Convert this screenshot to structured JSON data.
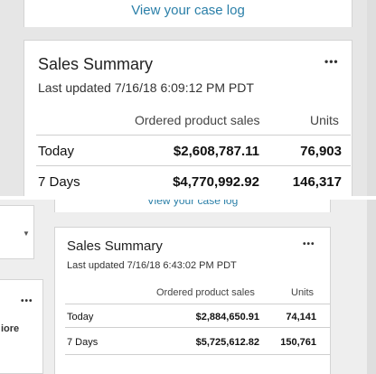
{
  "top": {
    "case_log_link": "View your case log",
    "card": {
      "title": "Sales Summary",
      "last_updated": "Last updated 7/16/18 6:09:12 PM PDT",
      "more_menu": "•••",
      "columns": [
        "Ordered product sales",
        "Units"
      ],
      "rows": [
        {
          "label": "Today",
          "sales": "$2,608,787.11",
          "units": "76,903"
        },
        {
          "label": "7 Days",
          "sales": "$4,770,992.92",
          "units": "146,317"
        }
      ]
    }
  },
  "bottom": {
    "case_log_link": "View your case log",
    "left_panel": {
      "more_menu": "•••",
      "more_text": "iore"
    },
    "card": {
      "title": "Sales Summary",
      "last_updated": "Last updated 7/16/18 6:43:02 PM PDT",
      "more_menu": "•••",
      "columns": [
        "Ordered product sales",
        "Units"
      ],
      "rows": [
        {
          "label": "Today",
          "sales": "$2,884,650.91",
          "units": "74,141"
        },
        {
          "label": "7 Days",
          "sales": "$5,725,612.82",
          "units": "150,761"
        }
      ]
    }
  },
  "colors": {
    "link": "#2a7fa8",
    "card_border": "#d4d4d4",
    "page_bg": "#e6e6e6"
  }
}
